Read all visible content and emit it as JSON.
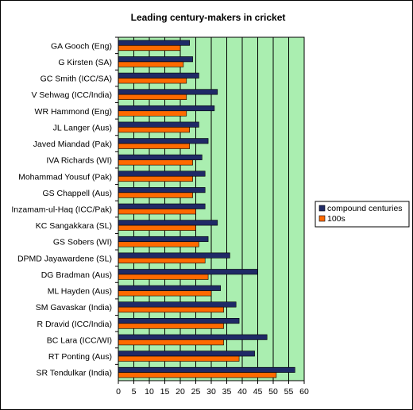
{
  "chart_data": {
    "type": "bar",
    "orientation": "horizontal",
    "title": "Leading century-makers in cricket",
    "categories": [
      "GA Gooch (Eng)",
      "G Kirsten (SA)",
      "GC Smith (ICC/SA)",
      "V Sehwag (ICC/India)",
      "WR Hammond (Eng)",
      "JL Langer (Aus)",
      "Javed Miandad (Pak)",
      "IVA Richards (WI)",
      "Mohammad Yousuf (Pak)",
      "GS Chappell (Aus)",
      "Inzamam-ul-Haq (ICC/Pak)",
      "KC Sangakkara (SL)",
      "GS Sobers (WI)",
      "DPMD Jayawardene (SL)",
      "DG Bradman (Aus)",
      "ML Hayden (Aus)",
      "SM Gavaskar (India)",
      "R Dravid (ICC/India)",
      "BC Lara (ICC/WI)",
      "RT Ponting (Aus)",
      "SR Tendulkar (India)"
    ],
    "series": [
      {
        "name": "compound centuries",
        "color": "#1f2a66",
        "values": [
          23,
          24,
          26,
          32,
          31,
          26,
          29,
          27,
          28,
          28,
          28,
          32,
          29,
          36,
          45,
          33,
          38,
          39,
          48,
          44,
          57
        ]
      },
      {
        "name": "100s",
        "color": "#ff6a00",
        "values": [
          20,
          21,
          22,
          22,
          22,
          23,
          23,
          24,
          24,
          24,
          25,
          25,
          26,
          28,
          29,
          30,
          34,
          34,
          34,
          39,
          51
        ]
      }
    ],
    "xlim": [
      0,
      60
    ],
    "xticks": [
      0,
      5,
      10,
      15,
      20,
      25,
      30,
      35,
      40,
      45,
      50,
      55,
      60
    ],
    "plot_background": "#aaeeb0",
    "grid": true,
    "legend_position": "right"
  }
}
